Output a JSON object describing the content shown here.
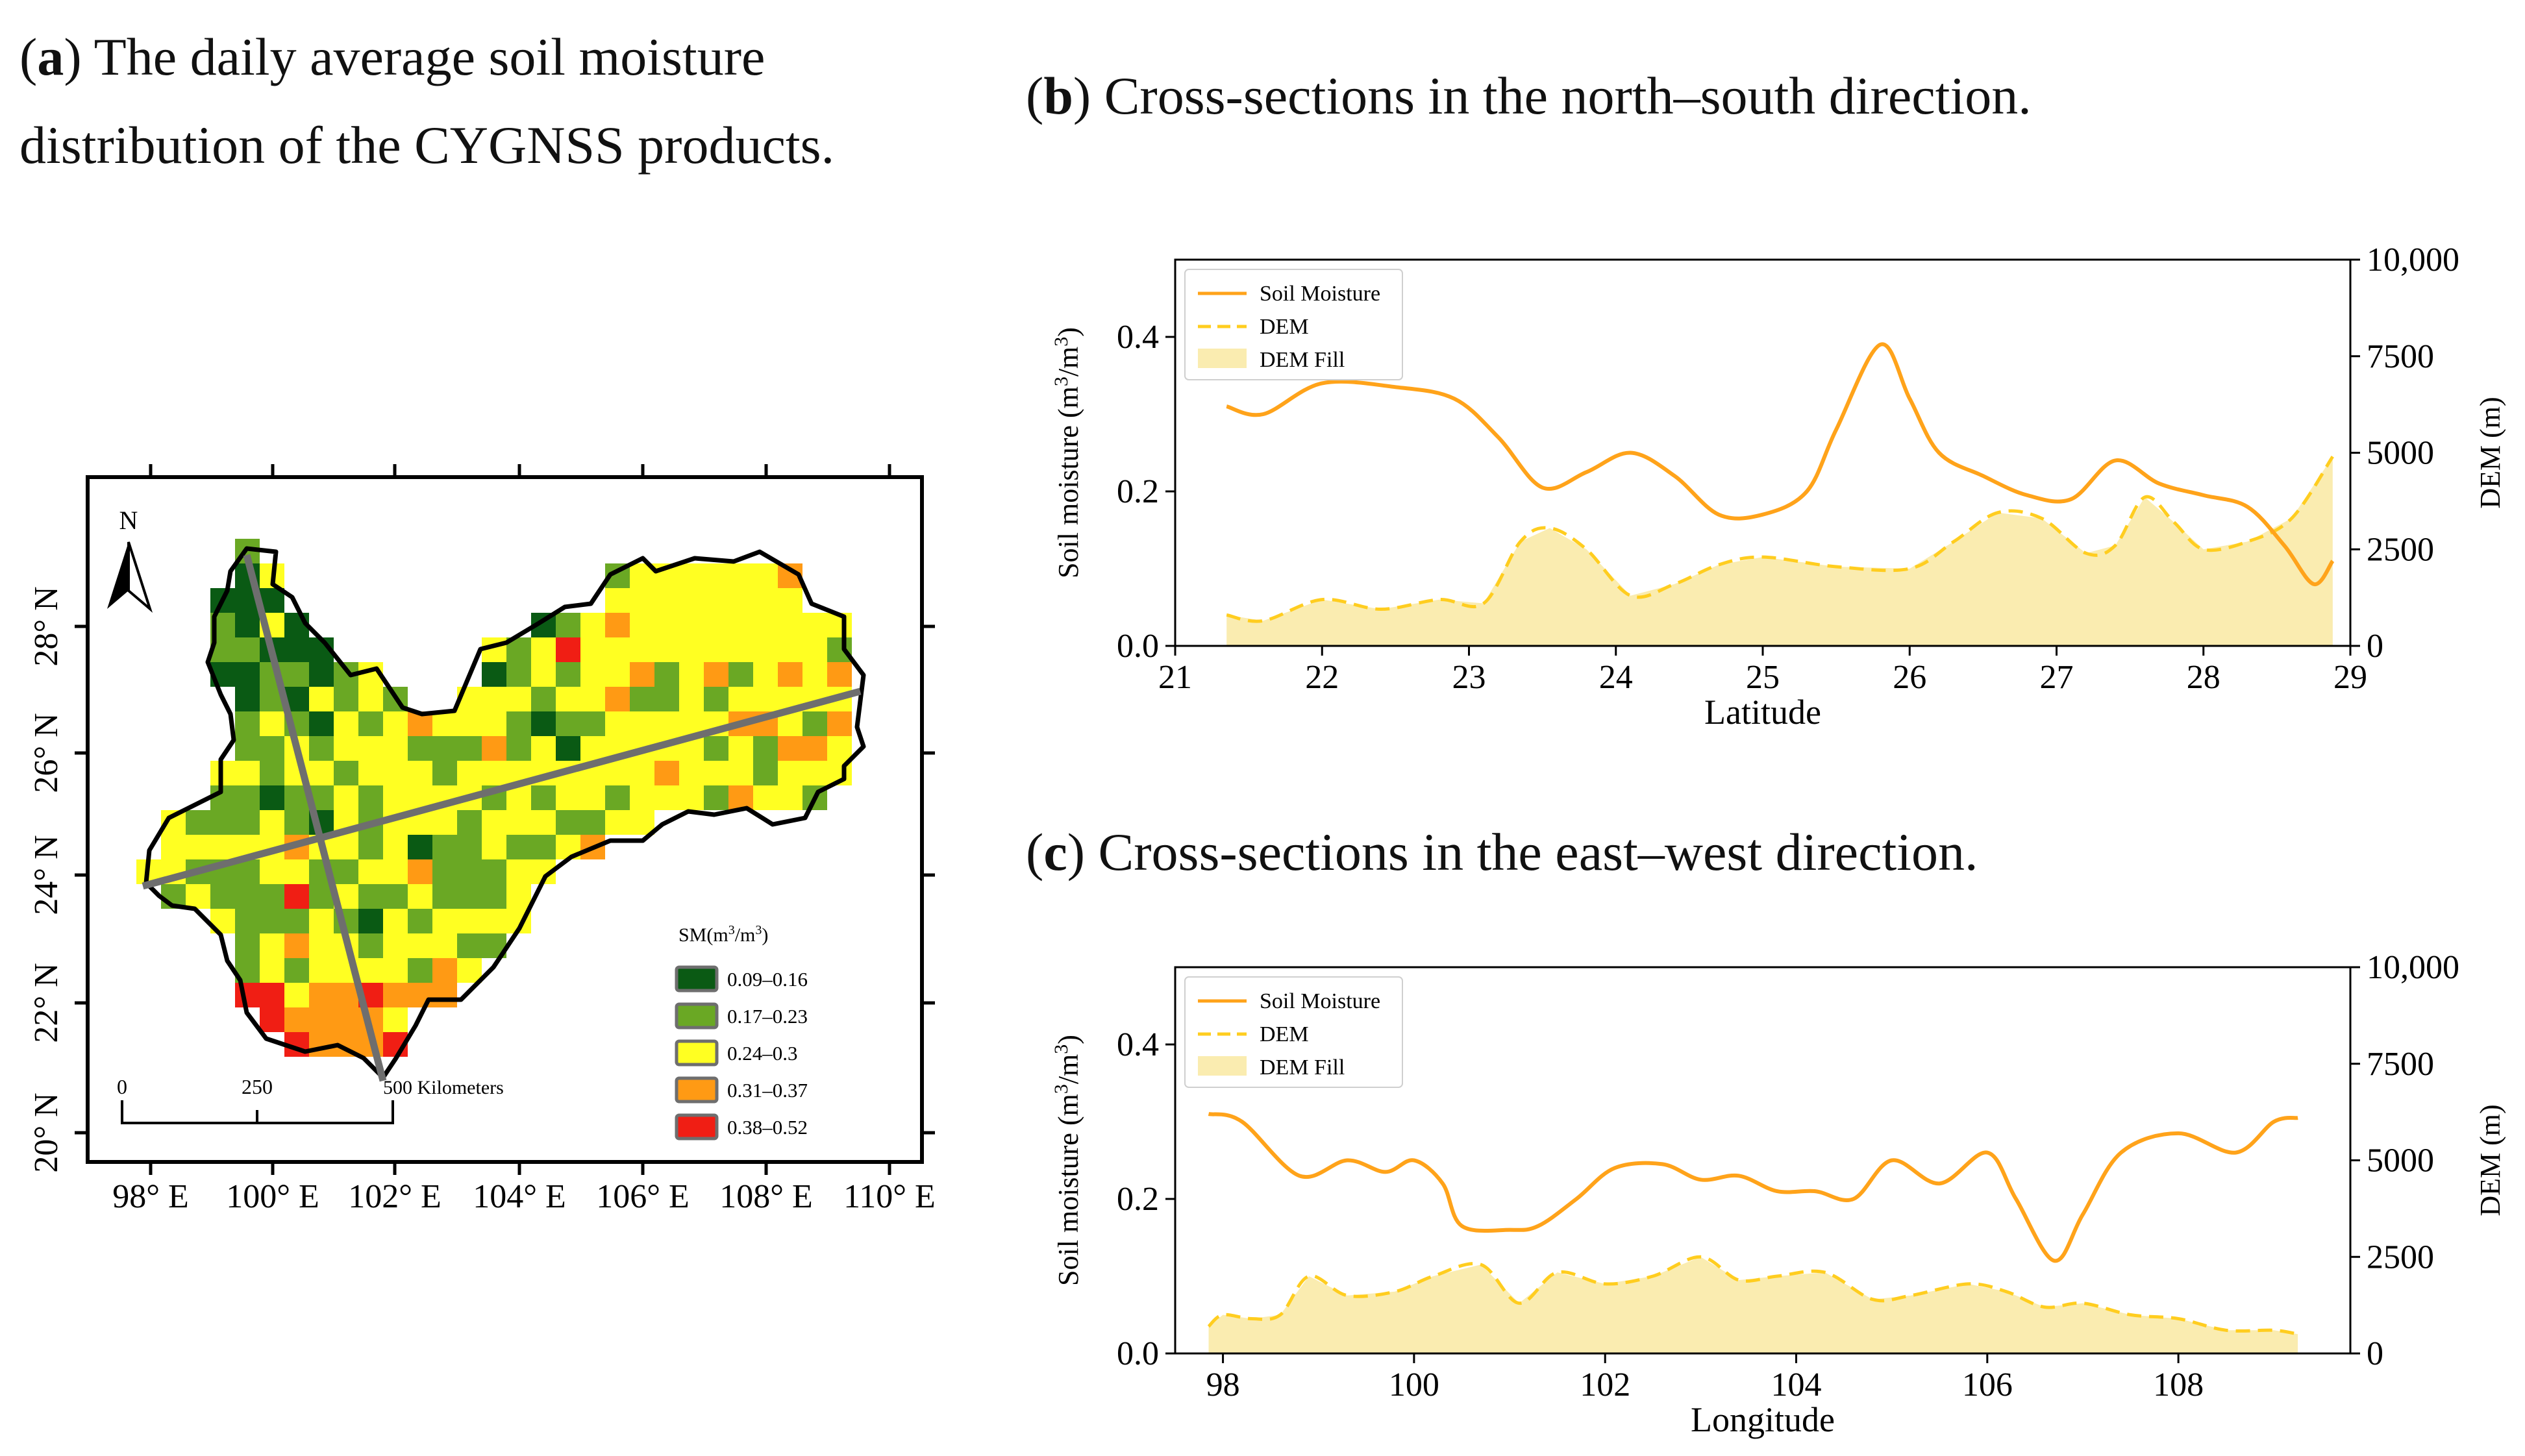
{
  "panel_a": {
    "letter": "a",
    "caption": "The daily average soil moisture distribution of the CYGNSS products.",
    "north_label": "N",
    "lon_ticks": [
      "98° E",
      "100° E",
      "102° E",
      "104° E",
      "106° E",
      "108° E",
      "110° E"
    ],
    "lat_ticks": [
      "20° N",
      "22° N",
      "24° N",
      "26° N",
      "28° N"
    ],
    "scale_bar": {
      "labels": [
        "0",
        "250",
        "500 Kilometers"
      ]
    },
    "legend": {
      "title_prefix": "SM(m",
      "title_mid": "/m",
      "title_suffix": ")",
      "superscript": "3",
      "classes": [
        {
          "label": "0.09–0.16",
          "color": "#0a5a14"
        },
        {
          "label": "0.17–0.23",
          "color": "#6aa824"
        },
        {
          "label": "0.24–0.3",
          "color": "#ffff22"
        },
        {
          "label": "0.31–0.37",
          "color": "#ff9a14"
        },
        {
          "label": "0.38–0.52",
          "color": "#f01e14"
        }
      ]
    },
    "colors": {
      "boundary": "#000000",
      "section_line": "#6e6e6e"
    }
  },
  "panel_b": {
    "letter": "b",
    "caption": "Cross-sections in the north–south direction."
  },
  "panel_c": {
    "letter": "c",
    "caption": "Cross-sections in the east–west direction."
  },
  "chart_data": [
    {
      "id": "b",
      "type": "line",
      "title": "Cross-sections in the north–south direction.",
      "xlabel": "Latitude",
      "ylabel": "Soil moisture (m3/m3)",
      "y2label": "DEM (m)",
      "xlim": [
        21,
        29
      ],
      "ylim": [
        0,
        0.5
      ],
      "y2lim": [
        0,
        10000
      ],
      "xticks": [
        "21",
        "22",
        "23",
        "24",
        "25",
        "26",
        "27",
        "28",
        "29"
      ],
      "yticks": [
        "0.0",
        "0.2",
        "0.4"
      ],
      "y2ticks": [
        "0",
        "2500",
        "5000",
        "7500",
        "10,000"
      ],
      "legend": [
        "Soil Moisture",
        "DEM",
        "DEM Fill"
      ],
      "series": [
        {
          "name": "Soil Moisture",
          "axis": "left",
          "color": "#ffa31a",
          "x": [
            21.35,
            21.6,
            22.0,
            22.5,
            22.9,
            23.2,
            23.5,
            23.8,
            24.1,
            24.4,
            24.7,
            25.0,
            25.3,
            25.5,
            25.8,
            26.0,
            26.2,
            26.5,
            26.8,
            27.1,
            27.4,
            27.7,
            28.0,
            28.3,
            28.55,
            28.75,
            28.88
          ],
          "y": [
            0.31,
            0.3,
            0.34,
            0.335,
            0.32,
            0.27,
            0.205,
            0.225,
            0.25,
            0.22,
            0.17,
            0.17,
            0.2,
            0.28,
            0.39,
            0.32,
            0.25,
            0.22,
            0.195,
            0.19,
            0.24,
            0.21,
            0.195,
            0.18,
            0.13,
            0.08,
            0.11
          ]
        },
        {
          "name": "DEM",
          "axis": "right",
          "color": "#ffcd1f",
          "x": [
            21.35,
            21.6,
            22.0,
            22.4,
            22.8,
            23.1,
            23.35,
            23.55,
            23.8,
            24.1,
            24.4,
            24.7,
            25.0,
            25.5,
            26.0,
            26.3,
            26.6,
            26.9,
            27.2,
            27.4,
            27.6,
            27.8,
            28.0,
            28.3,
            28.6,
            28.88
          ],
          "y": [
            800,
            650,
            1200,
            950,
            1200,
            1100,
            2700,
            3050,
            2500,
            1300,
            1600,
            2100,
            2300,
            2050,
            2000,
            2700,
            3450,
            3300,
            2400,
            2600,
            3850,
            3200,
            2500,
            2700,
            3300,
            4900
          ]
        }
      ]
    },
    {
      "id": "c",
      "type": "line",
      "title": "Cross-sections in the east–west direction.",
      "xlabel": "Longitude",
      "ylabel": "Soil moisture (m3/m3)",
      "y2label": "DEM (m)",
      "xlim": [
        97.5,
        109.8
      ],
      "ylim": [
        0,
        0.5
      ],
      "y2lim": [
        0,
        10000
      ],
      "xticks": [
        "98",
        "100",
        "102",
        "104",
        "106",
        "108"
      ],
      "xtick_values": [
        98,
        100,
        102,
        104,
        106,
        108
      ],
      "yticks": [
        "0.0",
        "0.2",
        "0.4"
      ],
      "y2ticks": [
        "0",
        "2500",
        "5000",
        "7500",
        "10,000"
      ],
      "legend": [
        "Soil Moisture",
        "DEM",
        "DEM Fill"
      ],
      "series": [
        {
          "name": "Soil Moisture",
          "axis": "left",
          "color": "#ffa31a",
          "x": [
            97.85,
            98.2,
            98.8,
            99.3,
            99.7,
            100.0,
            100.3,
            100.5,
            101.0,
            101.3,
            101.7,
            102.1,
            102.6,
            103.0,
            103.4,
            103.8,
            104.2,
            104.6,
            105.0,
            105.5,
            106.0,
            106.3,
            106.7,
            107.0,
            107.4,
            108.0,
            108.6,
            109.0,
            109.25
          ],
          "y": [
            0.31,
            0.3,
            0.23,
            0.25,
            0.235,
            0.25,
            0.22,
            0.165,
            0.16,
            0.165,
            0.2,
            0.24,
            0.245,
            0.225,
            0.23,
            0.21,
            0.21,
            0.2,
            0.25,
            0.22,
            0.26,
            0.2,
            0.12,
            0.18,
            0.26,
            0.285,
            0.26,
            0.3,
            0.305
          ]
        },
        {
          "name": "DEM",
          "axis": "right",
          "color": "#ffcd1f",
          "x": [
            97.85,
            98.0,
            98.3,
            98.6,
            98.9,
            99.3,
            99.8,
            100.2,
            100.7,
            101.1,
            101.5,
            102.0,
            102.5,
            103.0,
            103.4,
            103.8,
            104.3,
            104.8,
            105.2,
            105.8,
            106.2,
            106.6,
            107.0,
            107.5,
            108.0,
            108.5,
            109.0,
            109.25
          ],
          "y": [
            700,
            1000,
            900,
            1000,
            2000,
            1500,
            1600,
            2000,
            2300,
            1300,
            2100,
            1800,
            2000,
            2500,
            1900,
            2000,
            2100,
            1400,
            1500,
            1800,
            1600,
            1200,
            1300,
            1000,
            900,
            600,
            600,
            500
          ]
        }
      ]
    }
  ]
}
